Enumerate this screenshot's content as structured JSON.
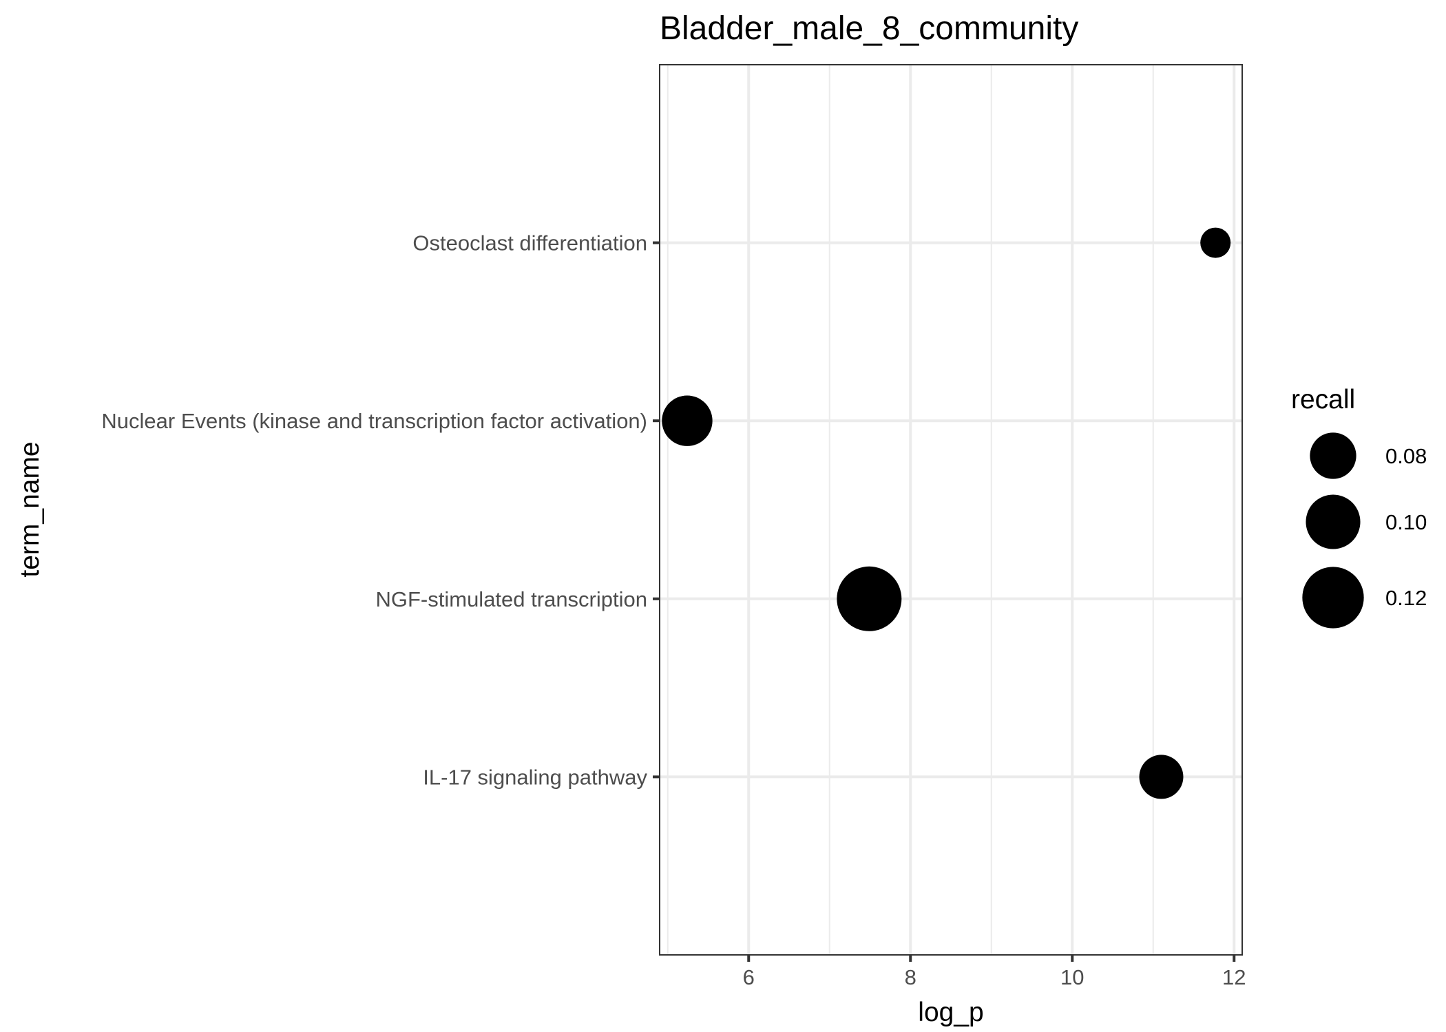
{
  "chart_data": {
    "type": "scatter",
    "title": "Bladder_male_8_community",
    "xlabel": "log_p",
    "ylabel": "term_name",
    "xlim": [
      4.9,
      12.1
    ],
    "x_ticks": [
      6,
      8,
      10,
      12
    ],
    "x_tick_labels": [
      "6",
      "8",
      "10",
      "12"
    ],
    "categories": [
      "Osteoclast differentiation",
      "Nuclear Events (kinase and transcription factor activation)",
      "NGF-stimulated transcription",
      "IL-17 signaling pathway"
    ],
    "points": [
      {
        "term_name": "Osteoclast differentiation",
        "log_p": 11.77,
        "recall": 0.05
      },
      {
        "term_name": "Nuclear Events (kinase and transcription factor activation)",
        "log_p": 5.24,
        "recall": 0.09
      },
      {
        "term_name": "NGF-stimulated transcription",
        "log_p": 7.49,
        "recall": 0.13
      },
      {
        "term_name": "IL-17 signaling pathway",
        "log_p": 11.1,
        "recall": 0.075
      }
    ],
    "size_legend": {
      "title": "recall",
      "values": [
        0.08,
        0.1,
        0.12
      ],
      "labels": [
        "0.08",
        "0.10",
        "0.12"
      ]
    },
    "point_color": "#000000",
    "grid": true,
    "legend_position": "right"
  }
}
